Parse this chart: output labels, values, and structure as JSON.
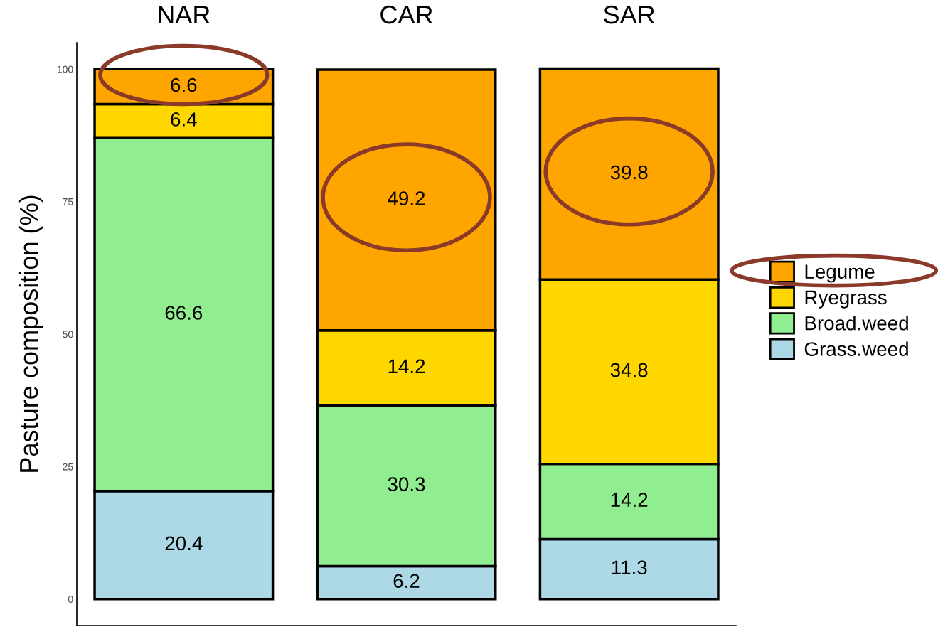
{
  "chart_data": {
    "type": "bar",
    "ylabel": "Pasture composition (%)",
    "stacked": true,
    "categories": [
      "NAR",
      "CAR",
      "SAR"
    ],
    "ylim": [
      -5,
      105
    ],
    "yticks": [
      0,
      25,
      50,
      75,
      100
    ],
    "grid": false,
    "data_labels": true,
    "legend": "right",
    "series": [
      {
        "name": "Grass.weed",
        "color": "#add8e6",
        "values": [
          20.4,
          6.2,
          11.3
        ]
      },
      {
        "name": "Broad.weed",
        "color": "#90ee90",
        "values": [
          66.6,
          30.3,
          14.2
        ]
      },
      {
        "name": "Ryegrass",
        "color": "#ffd700",
        "values": [
          6.4,
          14.2,
          34.8
        ]
      },
      {
        "name": "Legume",
        "color": "#ffa500",
        "values": [
          6.6,
          49.2,
          39.8
        ]
      }
    ]
  }
}
